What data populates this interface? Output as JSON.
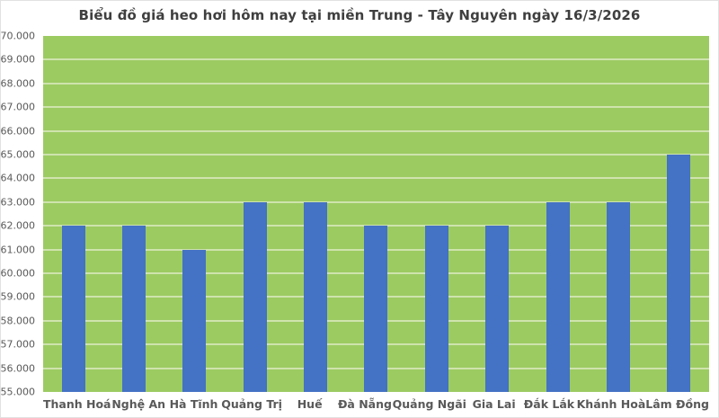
{
  "chart_data": {
    "type": "bar",
    "title": "Biểu đồ giá heo hơi hôm nay tại miền Trung - Tây Nguyên ngày 16/3/2026",
    "categories": [
      "Thanh Hoá",
      "Nghệ An",
      "Hà Tĩnh",
      "Quảng Trị",
      "Huế",
      "Đà Nẵng",
      "Quảng Ngãi",
      "Gia Lai",
      "Đắk Lắk",
      "Khánh Hoà",
      "Lâm Đồng"
    ],
    "values": [
      62000,
      62000,
      61000,
      63000,
      63000,
      62000,
      62000,
      62000,
      63000,
      63000,
      65000
    ],
    "xlabel": "",
    "ylabel": "",
    "ylim": [
      55000,
      70000
    ],
    "y_tick_step": 1000,
    "y_tick_labels": [
      "55.000",
      "56.000",
      "57.000",
      "58.000",
      "59.000",
      "60.000",
      "61.000",
      "62.000",
      "63.000",
      "64.000",
      "65.000",
      "66.000",
      "67.000",
      "68.000",
      "69.000",
      "70.000"
    ],
    "grid": true,
    "legend": false,
    "colors": {
      "bar": "#4472c4",
      "plot_background": "#9ccb62",
      "gridline": "#cfe3ad",
      "title_text": "#3f3f3f",
      "axis_text": "#595959",
      "chart_background": "#ffffff"
    }
  }
}
